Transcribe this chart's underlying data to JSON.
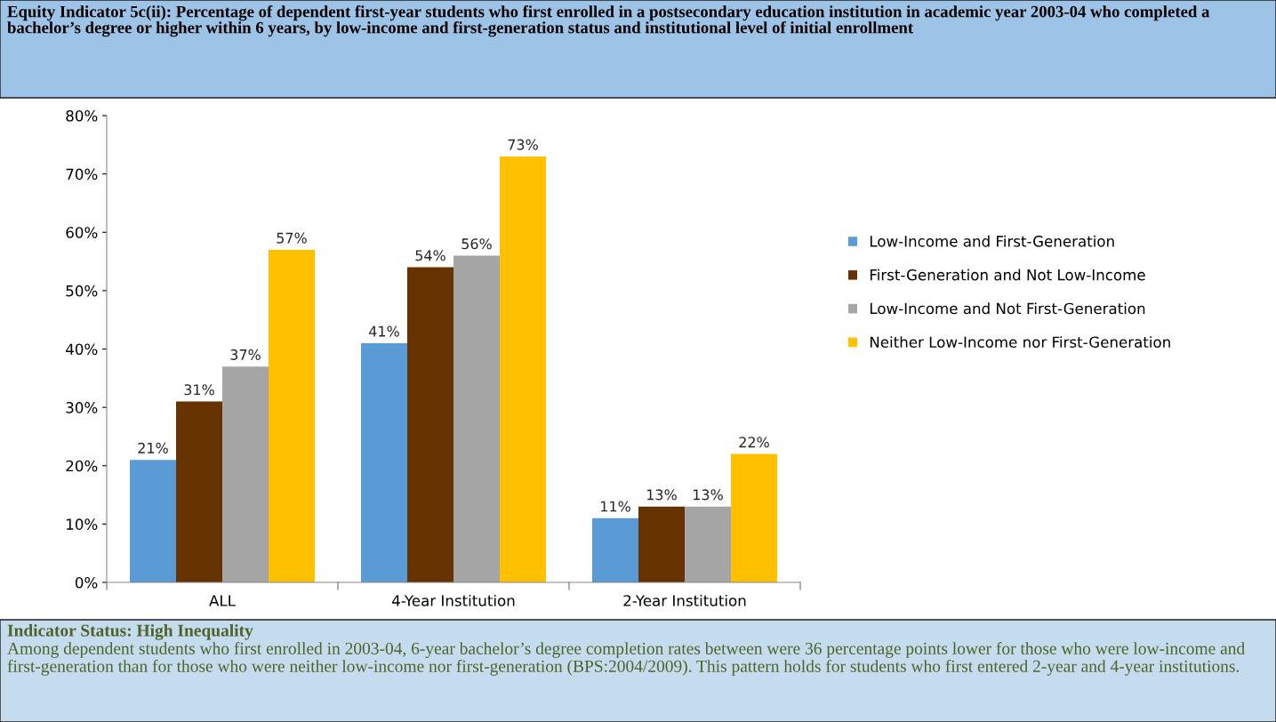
{
  "chart_data": {
    "type": "bar",
    "title": "Equity Indicator 5c(ii): Percentage of dependent first-year students who first enrolled in a postsecondary education institution in academic year 2003-04 who completed a bachelor’s degree or higher within 6 years, by low-income and first-generation status and institutional level of initial enrollment",
    "categories": [
      "ALL",
      "4-Year Institution",
      "2-Year Institution"
    ],
    "series": [
      {
        "name": "Low-Income and First-Generation",
        "color": "#5b9bd5",
        "values": [
          21,
          41,
          11
        ],
        "value_labels": [
          "21%",
          "41%",
          "11%"
        ]
      },
      {
        "name": "First-Generation and Not Low-Income",
        "color": "#663300",
        "values": [
          31,
          54,
          13
        ],
        "value_labels": [
          "31%",
          "54%",
          "13%"
        ]
      },
      {
        "name": "Low-Income and Not First-Generation",
        "color": "#a5a5a5",
        "values": [
          37,
          56,
          13
        ],
        "value_labels": [
          "37%",
          "56%",
          "13%"
        ]
      },
      {
        "name": "Neither Low-Income nor First-Generation",
        "color": "#ffc000",
        "values": [
          57,
          73,
          22
        ],
        "value_labels": [
          "57%",
          "73%",
          "22%"
        ]
      }
    ],
    "ylim": [
      0,
      80
    ],
    "yticks": [
      {
        "value": 0,
        "label": "0%"
      },
      {
        "value": 10,
        "label": "10%"
      },
      {
        "value": 20,
        "label": "20%"
      },
      {
        "value": 30,
        "label": "30%"
      },
      {
        "value": 40,
        "label": "40%"
      },
      {
        "value": 50,
        "label": "50%"
      },
      {
        "value": 60,
        "label": "60%"
      },
      {
        "value": 70,
        "label": "70%"
      },
      {
        "value": 80,
        "label": "80%"
      }
    ],
    "grid": false,
    "legend": "right",
    "annotations": [
      "Indicator Status: High Inequality",
      "Among dependent students who first enrolled in 2003-04, 6-year bachelor’s degree completion rates between were 36 percentage points lower for those who were low-income and first-generation than for those who were neither low-income nor first-generation (BPS:2004/2009). This pattern holds for students who first entered 2-year and 4-year institutions."
    ]
  }
}
